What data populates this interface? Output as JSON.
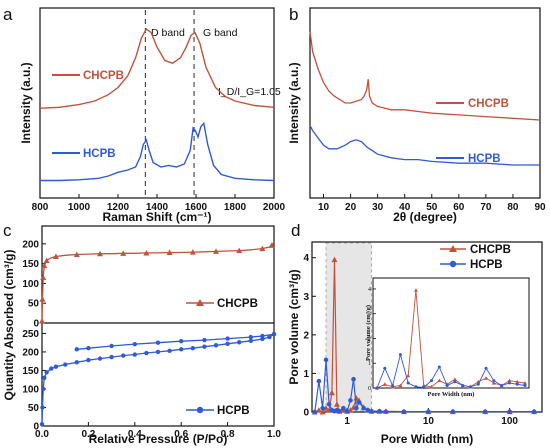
{
  "colors": {
    "red": "#c0533d",
    "blue": "#2f5bd6",
    "axis": "#111111",
    "shade": "#e6e6e6"
  },
  "chart_data": [
    {
      "panel": "a",
      "type": "line",
      "xlabel": "Raman Shift (cm⁻¹)",
      "ylabel": "Intensity (a.u.)",
      "xlim": [
        800,
        2000
      ],
      "xticks": [
        "800",
        "1000",
        "1200",
        "1400",
        "1600",
        "1800",
        "2000"
      ],
      "band_labels": [
        "D band",
        "G band"
      ],
      "band_positions": [
        1340,
        1590
      ],
      "ratio_label": "I_D/I_G=1.05",
      "series": [
        {
          "name": "CHCPB",
          "x": [
            800,
            900,
            1000,
            1080,
            1150,
            1200,
            1250,
            1290,
            1320,
            1345,
            1370,
            1400,
            1440,
            1480,
            1520,
            1550,
            1575,
            1595,
            1620,
            1650,
            1700,
            1750,
            1800,
            1900,
            2000
          ],
          "y": [
            0.02,
            0.03,
            0.06,
            0.1,
            0.17,
            0.25,
            0.38,
            0.58,
            0.8,
            0.9,
            0.86,
            0.7,
            0.55,
            0.52,
            0.58,
            0.7,
            0.83,
            0.86,
            0.74,
            0.48,
            0.25,
            0.15,
            0.1,
            0.05,
            0.03
          ]
        },
        {
          "name": "HCPB",
          "x": [
            800,
            900,
            1000,
            1100,
            1150,
            1200,
            1250,
            1290,
            1315,
            1330,
            1345,
            1360,
            1380,
            1420,
            1460,
            1500,
            1540,
            1570,
            1585,
            1598,
            1610,
            1625,
            1640,
            1660,
            1690,
            1730,
            1800,
            1900,
            2000
          ],
          "y": [
            0.02,
            0.02,
            0.03,
            0.05,
            0.08,
            0.13,
            0.16,
            0.2,
            0.34,
            0.5,
            0.56,
            0.42,
            0.26,
            0.2,
            0.22,
            0.2,
            0.24,
            0.42,
            0.72,
            0.68,
            0.6,
            0.74,
            0.78,
            0.5,
            0.22,
            0.1,
            0.05,
            0.03,
            0.02
          ]
        }
      ]
    },
    {
      "panel": "b",
      "type": "line",
      "xlabel": "2θ (degree)",
      "ylabel": "Intensity (a.u.)",
      "xlim": [
        5,
        90
      ],
      "xticks": [
        "10",
        "20",
        "30",
        "40",
        "50",
        "60",
        "70",
        "80",
        "90"
      ],
      "series": [
        {
          "name": "CHCPB",
          "x": [
            5,
            6,
            8,
            10,
            12,
            14,
            16,
            18,
            20,
            22,
            24,
            25,
            26,
            26.5,
            27,
            28,
            30,
            35,
            40,
            45,
            50,
            60,
            70,
            80,
            90
          ],
          "y": [
            1.0,
            0.88,
            0.78,
            0.7,
            0.65,
            0.62,
            0.6,
            0.58,
            0.58,
            0.59,
            0.6,
            0.62,
            0.66,
            0.72,
            0.62,
            0.58,
            0.56,
            0.54,
            0.54,
            0.53,
            0.52,
            0.51,
            0.5,
            0.49,
            0.48
          ]
        },
        {
          "name": "HCPB",
          "x": [
            5,
            6,
            8,
            10,
            12,
            15,
            18,
            20,
            22,
            24,
            26,
            28,
            30,
            35,
            40,
            45,
            50,
            60,
            70,
            80,
            90
          ],
          "y": [
            0.4,
            0.37,
            0.33,
            0.29,
            0.27,
            0.27,
            0.29,
            0.31,
            0.32,
            0.31,
            0.28,
            0.26,
            0.24,
            0.22,
            0.21,
            0.21,
            0.2,
            0.19,
            0.19,
            0.18,
            0.18
          ]
        }
      ]
    },
    {
      "panel": "c",
      "type": "line",
      "xlabel": "Relative Pressure (P/Po)",
      "ylabel": "Quantity Absorbed (cm³/g)",
      "xlim": [
        0,
        1.0
      ],
      "xticks": [
        "0.0",
        "0.2",
        "0.4",
        "0.6",
        "0.8",
        "1.0"
      ],
      "series": [
        {
          "name": "CHCPB",
          "ylim": [
            0,
            240
          ],
          "yticks": [
            "0",
            "50",
            "100",
            "150",
            "200"
          ],
          "x": [
            0.0,
            0.002,
            0.005,
            0.01,
            0.02,
            0.04,
            0.06,
            0.1,
            0.15,
            0.2,
            0.25,
            0.3,
            0.35,
            0.4,
            0.45,
            0.5,
            0.55,
            0.6,
            0.65,
            0.7,
            0.75,
            0.8,
            0.85,
            0.9,
            0.95,
            0.98,
            0.99,
            1.0
          ],
          "y": [
            5,
            60,
            115,
            145,
            158,
            165,
            168,
            171,
            173,
            174,
            175,
            175,
            176,
            176,
            177,
            177,
            178,
            178,
            179,
            180,
            181,
            182,
            183,
            185,
            188,
            192,
            196,
            205
          ]
        },
        {
          "name": "HCPB",
          "ylim": [
            0,
            270
          ],
          "yticks": [
            "0",
            "50",
            "100",
            "150",
            "200",
            "250"
          ],
          "x": [
            0.0,
            0.002,
            0.005,
            0.01,
            0.02,
            0.04,
            0.06,
            0.1,
            0.15,
            0.2,
            0.25,
            0.3,
            0.35,
            0.4,
            0.45,
            0.5,
            0.55,
            0.6,
            0.65,
            0.7,
            0.75,
            0.8,
            0.85,
            0.9,
            0.95,
            0.98,
            1.0
          ],
          "y": [
            5,
            50,
            100,
            130,
            145,
            155,
            160,
            166,
            172,
            178,
            182,
            186,
            190,
            193,
            197,
            200,
            203,
            207,
            210,
            214,
            218,
            222,
            226,
            230,
            235,
            240,
            248
          ],
          "desorption": {
            "x": [
              1.0,
              0.95,
              0.9,
              0.8,
              0.7,
              0.6,
              0.5,
              0.4,
              0.3,
              0.2,
              0.15
            ],
            "y": [
              248,
              243,
              240,
              236,
              232,
              229,
              225,
              221,
              216,
              210,
              207
            ]
          }
        }
      ]
    },
    {
      "panel": "d",
      "type": "line",
      "xlabel": "Pore Width (nm)",
      "ylabel": "Pore volume (cm³/g)",
      "xscale": "log",
      "xlim": [
        0.37,
        250
      ],
      "ylim": [
        0,
        4.2
      ],
      "xticks": [
        "1",
        "10",
        "100"
      ],
      "yticks": [
        "0",
        "1",
        "2",
        "3",
        "4"
      ],
      "series": [
        {
          "name": "CHCPB",
          "x": [
            0.4,
            0.45,
            0.5,
            0.55,
            0.6,
            0.65,
            0.7,
            0.75,
            0.8,
            0.9,
            1.0,
            1.1,
            1.2,
            1.3,
            1.4,
            1.6,
            1.8,
            2.0,
            2.5,
            3,
            5,
            10,
            20,
            50,
            100,
            200
          ],
          "y": [
            0,
            0.05,
            0,
            0.1,
            0.05,
            0.5,
            3.95,
            0.2,
            0.02,
            0.05,
            0.02,
            0.05,
            0.12,
            0.36,
            0.3,
            0.12,
            0.05,
            0.02,
            0.02,
            0.02,
            0.01,
            0.01,
            0.01,
            0.01,
            0.01,
            0.01
          ]
        },
        {
          "name": "HCPB",
          "x": [
            0.4,
            0.45,
            0.5,
            0.55,
            0.6,
            0.65,
            0.7,
            0.75,
            0.8,
            0.9,
            1.0,
            1.1,
            1.2,
            1.3,
            1.4,
            1.6,
            1.8,
            2.0,
            2.5,
            3,
            5,
            10,
            20,
            50,
            100,
            200
          ],
          "y": [
            0,
            0.8,
            0.1,
            1.35,
            0.2,
            0.05,
            0.02,
            0.05,
            0.02,
            0.1,
            0.02,
            0.3,
            0.85,
            0.1,
            0.25,
            0.1,
            0.05,
            0.02,
            0.02,
            0.01,
            0.01,
            0.01,
            0.01,
            0.01,
            0.01,
            0.01
          ]
        }
      ],
      "inset": {
        "xlabel": "Pore Width (nm)",
        "ylabel": "Pore volume (cm³/g)",
        "yticks": [
          "0",
          "1",
          "2",
          "3",
          "4"
        ],
        "series": [
          {
            "name": "CHCPB",
            "y": [
              0,
              0.15,
              0.05,
              0.1,
              0.5,
              3.95,
              0.1,
              0.05,
              0.3,
              0.15,
              0.35,
              0.1,
              0.05,
              0.25,
              0.4,
              0.2,
              0.1,
              0.3,
              0.25,
              0.2
            ]
          },
          {
            "name": "HCPB",
            "y": [
              0,
              0.8,
              0.1,
              1.35,
              0.2,
              0.05,
              0.02,
              0.3,
              0.85,
              0.1,
              0.25,
              0.1,
              0.05,
              0.15,
              0.8,
              0.3,
              0.1,
              0.2,
              0.15,
              0.1
            ]
          }
        ]
      }
    }
  ],
  "labels": {
    "panel_a": "a",
    "panel_b": "b",
    "panel_c": "c",
    "panel_d": "d",
    "legend_chcpb": "CHCPB",
    "legend_hcpb": "HCPB"
  }
}
